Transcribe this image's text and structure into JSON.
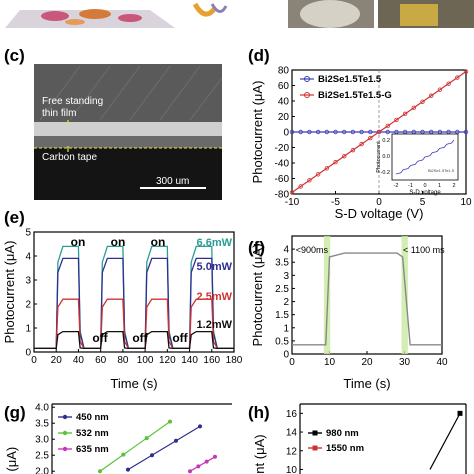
{
  "panels": {
    "c": {
      "label": "(c)",
      "film_text": "Free standing\nthin film",
      "tape_text": "Carbon tape",
      "scale_text": "300 um"
    },
    "d": {
      "label": "(d)",
      "xlabel": "S-D voltage (V)",
      "ylabel": "Photocurrent (μA)",
      "legend": [
        "Bi2Se1.5Te1.5",
        "Bi2Se1.5Te1.5-G"
      ],
      "inset": {
        "xlabel": "S-D voltage",
        "ylabel": "Photocurrent",
        "xticks": [
          "-2",
          "-1",
          "0",
          "1",
          "2"
        ],
        "yticks": [
          "0.2",
          "0.0",
          "-0.2"
        ],
        "legend": "Bi2Se1.5Te1.5"
      }
    },
    "e": {
      "label": "(e)",
      "xlabel": "Time (s)",
      "ylabel": "Photocurrent (μA)",
      "on_labels": [
        "on",
        "on",
        "on"
      ],
      "off_labels": [
        "off",
        "off",
        "off"
      ],
      "power_labels": [
        "6.6mW",
        "5.0mW",
        "2.5mW",
        "1.2mW"
      ]
    },
    "f": {
      "label": "(f)",
      "xlabel": "Time (s)",
      "ylabel": "Photocurrent (μA)",
      "rise": "<900ms",
      "fall": "< 1100 ms"
    },
    "g": {
      "label": "(g)",
      "ylabel": "ent (μA)",
      "legend": [
        "450 nm",
        "532 nm",
        "635 nm"
      ]
    },
    "h": {
      "label": "(h)",
      "ylabel": "rrent (μA)",
      "legend": [
        "980 nm",
        "1550 nm"
      ]
    }
  },
  "colors": {
    "bst": "#3b3bb5",
    "bstg": "#d03232",
    "green": "#5ac23a",
    "magenta": "#c23ab8",
    "teal": "#2a9d95",
    "navy": "#2f2f8f",
    "highlight": "#c8e8a0"
  },
  "chart_data": [
    {
      "type": "line",
      "panel": "d",
      "x": [
        -10,
        10
      ],
      "xlim": [
        -10,
        10
      ],
      "ylim": [
        -80,
        80
      ],
      "xticks": [
        -10,
        -5,
        0,
        5,
        10
      ],
      "yticks": [
        -80,
        -60,
        -40,
        -20,
        0,
        20,
        40,
        60,
        80
      ],
      "series": [
        {
          "name": "Bi2Se1.5Te1.5",
          "values": [
            0,
            0
          ]
        },
        {
          "name": "Bi2Se1.5Te1.5-G",
          "values": [
            -78,
            78
          ]
        }
      ]
    },
    {
      "type": "line",
      "panel": "e",
      "xlim": [
        0,
        180
      ],
      "ylim": [
        0,
        5
      ],
      "xticks": [
        0,
        20,
        40,
        60,
        80,
        100,
        120,
        140,
        160,
        180
      ],
      "yticks": [
        0,
        1,
        2,
        3,
        4,
        5
      ],
      "on_intervals": [
        [
          20,
          40
        ],
        [
          60,
          80
        ],
        [
          100,
          120
        ],
        [
          140,
          160
        ]
      ],
      "series": [
        {
          "name": "6.6mW",
          "on_value": 4.4
        },
        {
          "name": "5.0mW",
          "on_value": 3.9
        },
        {
          "name": "2.5mW",
          "on_value": 2.2
        },
        {
          "name": "1.2mW",
          "on_value": 0.85
        }
      ]
    },
    {
      "type": "line",
      "panel": "f",
      "xlim": [
        0,
        40
      ],
      "ylim": [
        0,
        4.5
      ],
      "xticks": [
        0,
        10,
        20,
        30,
        40
      ],
      "yticks": [
        0.0,
        0.5,
        1.0,
        1.5,
        2.0,
        2.5,
        3.0,
        3.5,
        4.0
      ],
      "x": [
        0,
        9,
        10,
        14,
        20,
        28,
        29.5,
        31.5,
        40
      ],
      "values": [
        0.35,
        0.35,
        3.7,
        3.85,
        3.85,
        3.85,
        3.7,
        0.35,
        0.35
      ]
    },
    {
      "type": "line",
      "panel": "g",
      "yticks": [
        2.0,
        2.5,
        3.0,
        3.5,
        4.0
      ],
      "ylim": [
        2.0,
        4.0
      ],
      "series": [
        {
          "name": "450 nm",
          "x": [
            128,
            200
          ],
          "values": [
            2.05,
            3.4
          ]
        },
        {
          "name": "532 nm",
          "x": [
            100,
            170
          ],
          "values": [
            2.0,
            3.55
          ]
        },
        {
          "name": "635 nm",
          "x": [
            190,
            215
          ],
          "values": [
            2.0,
            2.45
          ]
        }
      ]
    },
    {
      "type": "line",
      "panel": "h",
      "yticks": [
        10,
        12,
        14,
        16
      ],
      "ylim": [
        10,
        17
      ],
      "series": [
        {
          "name": "980 nm",
          "x": [
            430,
            460
          ],
          "values": [
            10,
            16
          ]
        },
        {
          "name": "1550 nm",
          "values": []
        }
      ]
    }
  ]
}
